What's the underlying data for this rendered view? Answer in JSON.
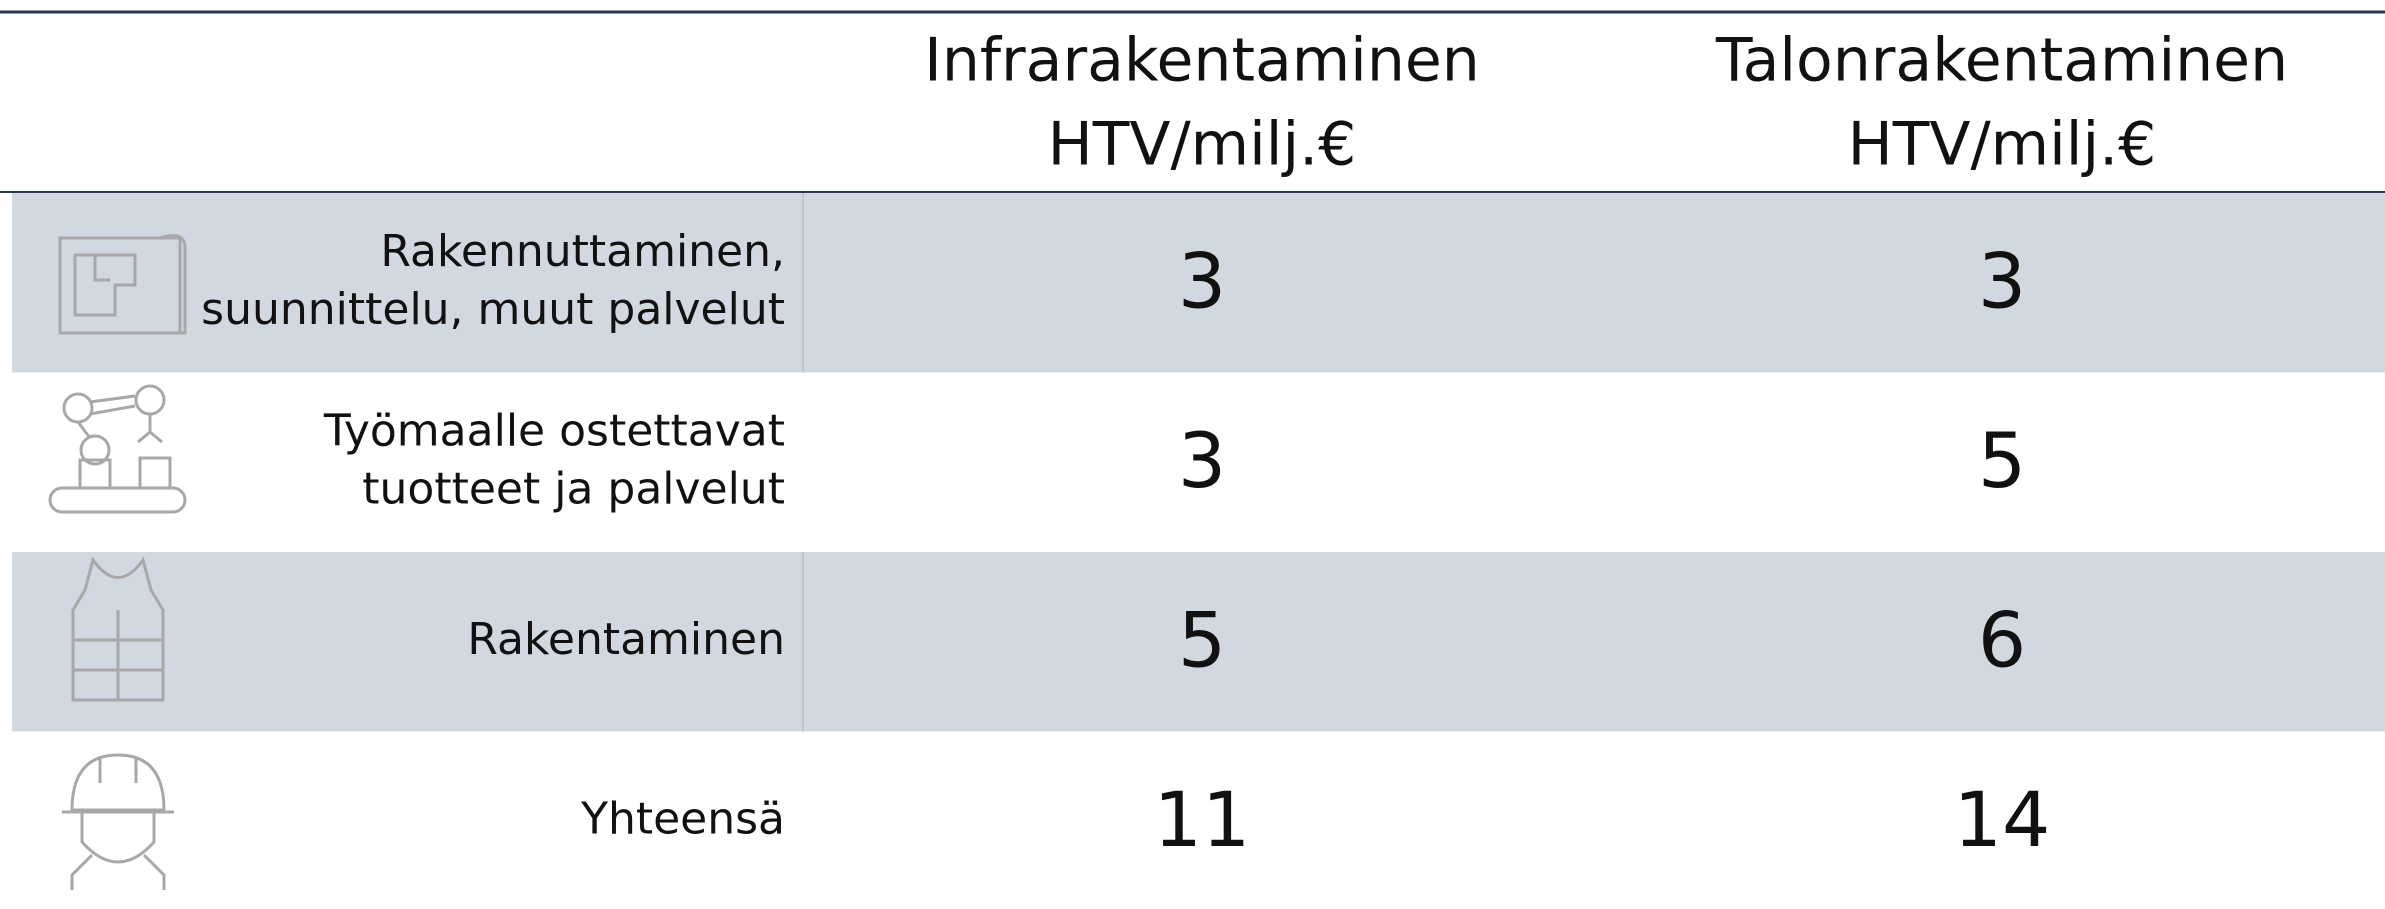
{
  "table": {
    "headers": [
      [
        "Infrarakentaminen",
        "HTV/milj.€"
      ],
      [
        "Talonrakentaminen",
        "HTV/milj.€"
      ]
    ],
    "rows": [
      {
        "label": [
          "Rakennuttaminen,",
          "suunnittelu, muut palvelut"
        ],
        "values": [
          3,
          3
        ]
      },
      {
        "label": [
          "Työmaalle ostettavat",
          "tuotteet ja palvelut"
        ],
        "values": [
          3,
          5
        ]
      },
      {
        "label": [
          "Rakentaminen"
        ],
        "values": [
          5,
          6
        ]
      },
      {
        "label": [
          "Yhteensä"
        ],
        "values": [
          11,
          14
        ]
      }
    ]
  }
}
